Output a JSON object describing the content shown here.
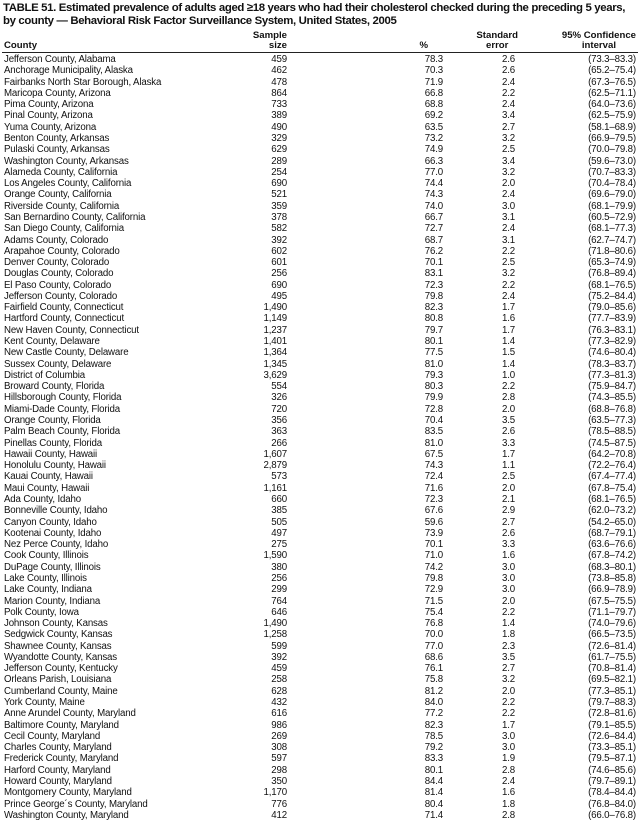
{
  "title": "TABLE 51. Estimated prevalence of adults aged ≥18 years who had their cholesterol checked during the preceding 5 years, by county — Behavioral Risk Factor Surveillance System, United States, 2005",
  "columns": {
    "county": "County",
    "sample_1": "Sample",
    "sample_2": "size",
    "pct": "%",
    "se_1": "Standard",
    "se_2": "error",
    "ci_1": "95% Confidence",
    "ci_2": "interval"
  },
  "rows": [
    [
      "Jefferson County, Alabama",
      "459",
      "78.3",
      "2.6",
      "(73.3–83.3)"
    ],
    [
      "Anchorage Municipality, Alaska",
      "462",
      "70.3",
      "2.6",
      "(65.2–75.4)"
    ],
    [
      "Fairbanks North Star Borough, Alaska",
      "478",
      "71.9",
      "2.4",
      "(67.3–76.5)"
    ],
    [
      "Maricopa County, Arizona",
      "864",
      "66.8",
      "2.2",
      "(62.5–71.1)"
    ],
    [
      "Pima County, Arizona",
      "733",
      "68.8",
      "2.4",
      "(64.0–73.6)"
    ],
    [
      "Pinal County, Arizona",
      "389",
      "69.2",
      "3.4",
      "(62.5–75.9)"
    ],
    [
      "Yuma County, Arizona",
      "490",
      "63.5",
      "2.7",
      "(58.1–68.9)"
    ],
    [
      "Benton County, Arkansas",
      "329",
      "73.2",
      "3.2",
      "(66.9–79.5)"
    ],
    [
      "Pulaski County, Arkansas",
      "629",
      "74.9",
      "2.5",
      "(70.0–79.8)"
    ],
    [
      "Washington County, Arkansas",
      "289",
      "66.3",
      "3.4",
      "(59.6–73.0)"
    ],
    [
      "Alameda County, California",
      "254",
      "77.0",
      "3.2",
      "(70.7–83.3)"
    ],
    [
      "Los Angeles County, California",
      "690",
      "74.4",
      "2.0",
      "(70.4–78.4)"
    ],
    [
      "Orange County, California",
      "521",
      "74.3",
      "2.4",
      "(69.6–79.0)"
    ],
    [
      "Riverside County, California",
      "359",
      "74.0",
      "3.0",
      "(68.1–79.9)"
    ],
    [
      "San Bernardino County, California",
      "378",
      "66.7",
      "3.1",
      "(60.5–72.9)"
    ],
    [
      "San Diego County, California",
      "582",
      "72.7",
      "2.4",
      "(68.1–77.3)"
    ],
    [
      "Adams County, Colorado",
      "392",
      "68.7",
      "3.1",
      "(62.7–74.7)"
    ],
    [
      "Arapahoe County, Colorado",
      "602",
      "76.2",
      "2.2",
      "(71.8–80.6)"
    ],
    [
      "Denver County, Colorado",
      "601",
      "70.1",
      "2.5",
      "(65.3–74.9)"
    ],
    [
      "Douglas County, Colorado",
      "256",
      "83.1",
      "3.2",
      "(76.8–89.4)"
    ],
    [
      "El Paso County, Colorado",
      "690",
      "72.3",
      "2.2",
      "(68.1–76.5)"
    ],
    [
      "Jefferson County, Colorado",
      "495",
      "79.8",
      "2.4",
      "(75.2–84.4)"
    ],
    [
      "Fairfield County, Connecticut",
      "1,490",
      "82.3",
      "1.7",
      "(79.0–85.6)"
    ],
    [
      "Hartford County, Connecticut",
      "1,149",
      "80.8",
      "1.6",
      "(77.7–83.9)"
    ],
    [
      "New Haven County, Connecticut",
      "1,237",
      "79.7",
      "1.7",
      "(76.3–83.1)"
    ],
    [
      "Kent County, Delaware",
      "1,401",
      "80.1",
      "1.4",
      "(77.3–82.9)"
    ],
    [
      "New Castle County, Delaware",
      "1,364",
      "77.5",
      "1.5",
      "(74.6–80.4)"
    ],
    [
      "Sussex County, Delaware",
      "1,345",
      "81.0",
      "1.4",
      "(78.3–83.7)"
    ],
    [
      "District of Columbia",
      "3,629",
      "79.3",
      "1.0",
      "(77.3–81.3)"
    ],
    [
      "Broward County, Florida",
      "554",
      "80.3",
      "2.2",
      "(75.9–84.7)"
    ],
    [
      "Hillsborough County, Florida",
      "326",
      "79.9",
      "2.8",
      "(74.3–85.5)"
    ],
    [
      "Miami-Dade County, Florida",
      "720",
      "72.8",
      "2.0",
      "(68.8–76.8)"
    ],
    [
      "Orange County, Florida",
      "356",
      "70.4",
      "3.5",
      "(63.5–77.3)"
    ],
    [
      "Palm Beach County, Florida",
      "363",
      "83.5",
      "2.6",
      "(78.5–88.5)"
    ],
    [
      "Pinellas County, Florida",
      "266",
      "81.0",
      "3.3",
      "(74.5–87.5)"
    ],
    [
      "Hawaii County, Hawaii",
      "1,607",
      "67.5",
      "1.7",
      "(64.2–70.8)"
    ],
    [
      "Honolulu County, Hawaii",
      "2,879",
      "74.3",
      "1.1",
      "(72.2–76.4)"
    ],
    [
      "Kauai County, Hawaii",
      "573",
      "72.4",
      "2.5",
      "(67.4–77.4)"
    ],
    [
      "Maui County, Hawaii",
      "1,161",
      "71.6",
      "2.0",
      "(67.8–75.4)"
    ],
    [
      "Ada County, Idaho",
      "660",
      "72.3",
      "2.1",
      "(68.1–76.5)"
    ],
    [
      "Bonneville County, Idaho",
      "385",
      "67.6",
      "2.9",
      "(62.0–73.2)"
    ],
    [
      "Canyon County, Idaho",
      "505",
      "59.6",
      "2.7",
      "(54.2–65.0)"
    ],
    [
      "Kootenai County, Idaho",
      "497",
      "73.9",
      "2.6",
      "(68.7–79.1)"
    ],
    [
      "Nez Perce County, Idaho",
      "275",
      "70.1",
      "3.3",
      "(63.6–76.6)"
    ],
    [
      "Cook County, Illinois",
      "1,590",
      "71.0",
      "1.6",
      "(67.8–74.2)"
    ],
    [
      "DuPage County, Illinois",
      "380",
      "74.2",
      "3.0",
      "(68.3–80.1)"
    ],
    [
      "Lake County, Illinois",
      "256",
      "79.8",
      "3.0",
      "(73.8–85.8)"
    ],
    [
      "Lake County, Indiana",
      "299",
      "72.9",
      "3.0",
      "(66.9–78.9)"
    ],
    [
      "Marion County, Indiana",
      "764",
      "71.5",
      "2.0",
      "(67.5–75.5)"
    ],
    [
      "Polk County, Iowa",
      "646",
      "75.4",
      "2.2",
      "(71.1–79.7)"
    ],
    [
      "Johnson County, Kansas",
      "1,490",
      "76.8",
      "1.4",
      "(74.0–79.6)"
    ],
    [
      "Sedgwick County, Kansas",
      "1,258",
      "70.0",
      "1.8",
      "(66.5–73.5)"
    ],
    [
      "Shawnee County, Kansas",
      "599",
      "77.0",
      "2.3",
      "(72.6–81.4)"
    ],
    [
      "Wyandotte County, Kansas",
      "392",
      "68.6",
      "3.5",
      "(61.7–75.5)"
    ],
    [
      "Jefferson County, Kentucky",
      "459",
      "76.1",
      "2.7",
      "(70.8–81.4)"
    ],
    [
      "Orleans Parish, Louisiana",
      "258",
      "75.8",
      "3.2",
      "(69.5–82.1)"
    ],
    [
      "Cumberland County, Maine",
      "628",
      "81.2",
      "2.0",
      "(77.3–85.1)"
    ],
    [
      "York County, Maine",
      "432",
      "84.0",
      "2.2",
      "(79.7–88.3)"
    ],
    [
      "Anne Arundel County, Maryland",
      "616",
      "77.2",
      "2.2",
      "(72.8–81.6)"
    ],
    [
      "Baltimore County, Maryland",
      "986",
      "82.3",
      "1.7",
      "(79.1–85.5)"
    ],
    [
      "Cecil County, Maryland",
      "269",
      "78.5",
      "3.0",
      "(72.6–84.4)"
    ],
    [
      "Charles County, Maryland",
      "308",
      "79.2",
      "3.0",
      "(73.3–85.1)"
    ],
    [
      "Frederick County, Maryland",
      "597",
      "83.3",
      "1.9",
      "(79.5–87.1)"
    ],
    [
      "Harford County, Maryland",
      "298",
      "80.1",
      "2.8",
      "(74.6–85.6)"
    ],
    [
      "Howard County, Maryland",
      "350",
      "84.4",
      "2.4",
      "(79.7–89.1)"
    ],
    [
      "Montgomery County, Maryland",
      "1,170",
      "81.4",
      "1.6",
      "(78.4–84.4)"
    ],
    [
      "Prince George´s County, Maryland",
      "776",
      "80.4",
      "1.8",
      "(76.8–84.0)"
    ],
    [
      "Washington County, Maryland",
      "412",
      "71.4",
      "2.8",
      "(66.0–76.8)"
    ]
  ]
}
